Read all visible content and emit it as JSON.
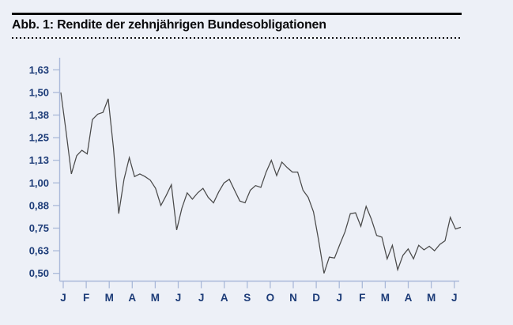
{
  "title": "Abb. 1: Rendite der zehnjährigen Bundesobligationen",
  "colors": {
    "background": "#edf0f7",
    "title_text": "#0a0a0c",
    "rule": "#0a0a0c",
    "axis": "#aab9d9",
    "tick_label": "#1d3c78",
    "line": "#4a4a4a"
  },
  "chart_data": {
    "type": "line",
    "title": "Abb. 1: Rendite der zehnjährigen Bundesobligationen",
    "x_tick_labels": [
      "J",
      "F",
      "M",
      "A",
      "M",
      "J",
      "J",
      "A",
      "S",
      "O",
      "N",
      "D",
      "J",
      "F",
      "M",
      "A",
      "M",
      "J"
    ],
    "y_tick_labels": [
      "1,63",
      "1,50",
      "1,38",
      "1,25",
      "1,13",
      "1,00",
      "0,88",
      "0,75",
      "0,63",
      "0,50"
    ],
    "y_tick_values": [
      1.625,
      1.5,
      1.375,
      1.25,
      1.125,
      1.0,
      0.875,
      0.75,
      0.625,
      0.5
    ],
    "ylim": [
      0.46,
      1.69
    ],
    "x_unit": "week",
    "xlim_weeks": [
      0,
      76
    ],
    "grid": false,
    "legend": false,
    "values": [
      1.5,
      1.28,
      1.05,
      1.15,
      1.18,
      1.16,
      1.35,
      1.38,
      1.39,
      1.465,
      1.19,
      0.83,
      1.02,
      1.14,
      1.035,
      1.05,
      1.035,
      1.015,
      0.97,
      0.875,
      0.93,
      0.99,
      0.74,
      0.86,
      0.945,
      0.91,
      0.945,
      0.97,
      0.92,
      0.89,
      0.95,
      1.0,
      1.02,
      0.96,
      0.9,
      0.89,
      0.96,
      0.985,
      0.975,
      1.06,
      1.125,
      1.04,
      1.115,
      1.085,
      1.06,
      1.06,
      0.96,
      0.92,
      0.84,
      0.68,
      0.5,
      0.59,
      0.585,
      0.66,
      0.73,
      0.83,
      0.835,
      0.76,
      0.87,
      0.8,
      0.71,
      0.7,
      0.58,
      0.655,
      0.52,
      0.6,
      0.635,
      0.58,
      0.655,
      0.63,
      0.65,
      0.625,
      0.66,
      0.68,
      0.81,
      0.745,
      0.755
    ]
  }
}
